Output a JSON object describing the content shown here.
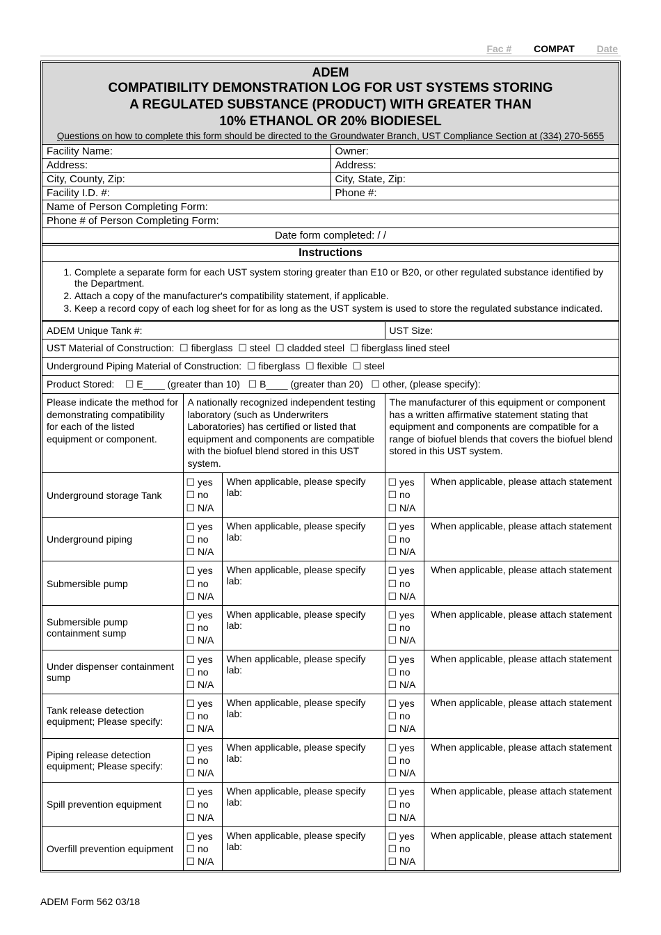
{
  "topHeader": {
    "fac": "Fac #",
    "compat": "COMPAT",
    "date": "Date"
  },
  "title": {
    "adem": "ADEM",
    "line1": "COMPATIBILITY DEMONSTRATION LOG FOR UST SYSTEMS STORING",
    "line2": "A REGULATED SUBSTANCE (PRODUCT) WITH GREATER THAN",
    "line3": "10% ETHANOL OR 20% BIODIESEL",
    "sub": "Questions on how to complete this form should be directed to the Groundwater Branch, UST Compliance Section at (334) 270-5655"
  },
  "info": {
    "facilityName": "Facility Name:",
    "owner": "Owner:",
    "address1": "Address:",
    "address2": "Address:",
    "ccz": "City, County, Zip:",
    "csz": "City, State, Zip:",
    "facId": "Facility I.D. #:",
    "phone": "Phone #:",
    "personName": "Name of Person Completing Form:",
    "personPhone": "Phone # of Person Completing Form:",
    "dateCompleted": "Date form completed:          /          /"
  },
  "instructionsHead": "Instructions",
  "instructions": [
    "Complete a separate form for each UST system storing greater than E10 or B20, or other regulated substance identified by the Department.",
    "Attach a copy of the manufacturer's compatibility statement, if applicable.",
    "Keep a record copy of each log sheet for for as long as the UST system is used to store the regulated substance indicated."
  ],
  "tankRow": {
    "ademTank": "ADEM Unique Tank #:",
    "ustSize": "UST Size:"
  },
  "ustMaterial": {
    "label": "UST Material of Construction:",
    "opts": [
      "fiberglass",
      "steel",
      "cladded steel",
      "fiberglass lined steel"
    ]
  },
  "pipingMaterial": {
    "label": "Underground Piping Material of Construction:",
    "opts": [
      "fiberglass",
      "flexible",
      "steel"
    ]
  },
  "productStored": {
    "label": "Product Stored:",
    "e": "E____  (greater than 10)",
    "b": "B____  (greater than 20)",
    "other": "other, (please specify):"
  },
  "methodHead": {
    "left": "Please indicate the method for demonstrating compatibility for each of the listed equipment or component.",
    "mid": "A nationally recognized independent testing laboratory (such as Underwriters Laboratories) has certified or listed that equipment and components are compatible with the biofuel blend stored in this UST system.",
    "right": "The manufacturer of this equipment or component has a written affirmative statement stating that equipment and components are compatible for a range of biofuel blends that covers the biofuel blend stored in this UST system."
  },
  "yn": {
    "yes": "yes",
    "no": "no",
    "na": "N/A"
  },
  "labText": "When applicable, please specify lab:",
  "attachText": "When applicable, please attach statement",
  "equipRows": [
    "Underground storage Tank",
    "Underground piping",
    "Submersible pump",
    "Submersible pump containment sump",
    "Under dispenser containment sump",
    "Tank release detection equipment; Please specify:",
    "Piping release detection equipment; Please specify:",
    "Spill prevention equipment",
    "Overfill prevention equipment"
  ],
  "footer": "ADEM Form 562 03/18"
}
